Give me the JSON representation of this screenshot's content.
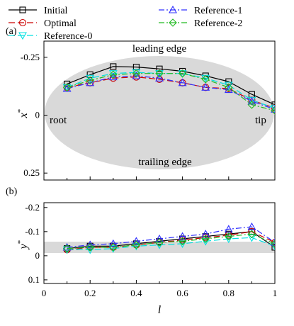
{
  "legend": [
    {
      "name": "Initial",
      "color": "#000000",
      "dash": "",
      "marker": "square"
    },
    {
      "name": "Optimal",
      "color": "#cc0000",
      "dash": "9 4",
      "marker": "circle"
    },
    {
      "name": "Reference-0",
      "color": "#00e0e0",
      "dash": "9 4",
      "marker": "tri-down"
    },
    {
      "name": "Reference-1",
      "color": "#3030ff",
      "dash": "8 3 2 3",
      "marker": "tri-up"
    },
    {
      "name": "Reference-2",
      "color": "#22bb22",
      "dash": "8 3 2 3",
      "marker": "diamond"
    }
  ],
  "panel_a": {
    "label": "(a)",
    "ylabel": "x*",
    "yticks": [
      "-0.25",
      "0",
      "0.25"
    ],
    "annotations": {
      "leading": "leading edge",
      "trailing": "trailing edge",
      "root": "root",
      "tip": "tip"
    },
    "ellipse_color": "#d9d9d9"
  },
  "panel_b": {
    "label": "(b)",
    "ylabel": "y*",
    "yticks": [
      "-0.2",
      "-0.1",
      "0",
      "0.1"
    ],
    "xticks": [
      "0",
      "0.2",
      "0.4",
      "0.6",
      "0.8",
      "1"
    ],
    "xlabel": "l",
    "band_color": "#d9d9d9"
  },
  "chart_data": [
    {
      "type": "line",
      "panel": "a",
      "ylabel": "x*",
      "ylim": [
        0.28,
        -0.32
      ],
      "xlim": [
        0,
        1
      ],
      "x": [
        0.1,
        0.2,
        0.3,
        0.4,
        0.5,
        0.6,
        0.7,
        0.8,
        0.9,
        1.0
      ],
      "series": [
        {
          "name": "Initial",
          "values": [
            -0.135,
            -0.175,
            -0.21,
            -0.208,
            -0.2,
            -0.19,
            -0.17,
            -0.145,
            -0.09,
            -0.045
          ]
        },
        {
          "name": "Optimal",
          "values": [
            -0.12,
            -0.14,
            -0.16,
            -0.165,
            -0.155,
            -0.14,
            -0.12,
            -0.115,
            -0.065,
            -0.03
          ]
        },
        {
          "name": "Reference-0",
          "values": [
            -0.12,
            -0.16,
            -0.18,
            -0.185,
            -0.18,
            -0.18,
            -0.16,
            -0.13,
            -0.065,
            -0.03
          ]
        },
        {
          "name": "Reference-1",
          "values": [
            -0.115,
            -0.14,
            -0.165,
            -0.17,
            -0.16,
            -0.14,
            -0.12,
            -0.11,
            -0.06,
            -0.025
          ]
        },
        {
          "name": "Reference-2",
          "values": [
            -0.12,
            -0.15,
            -0.175,
            -0.18,
            -0.18,
            -0.18,
            -0.155,
            -0.12,
            -0.045,
            -0.02
          ]
        }
      ]
    },
    {
      "type": "line",
      "panel": "b",
      "xlabel": "l",
      "ylabel": "y*",
      "ylim": [
        0.115,
        -0.22
      ],
      "xlim": [
        0,
        1
      ],
      "x": [
        0.1,
        0.2,
        0.3,
        0.4,
        0.5,
        0.6,
        0.7,
        0.8,
        0.9,
        1.0
      ],
      "series": [
        {
          "name": "Initial",
          "values": [
            -0.03,
            -0.04,
            -0.04,
            -0.05,
            -0.06,
            -0.07,
            -0.08,
            -0.09,
            -0.1,
            -0.035
          ]
        },
        {
          "name": "Optimal",
          "values": [
            -0.025,
            -0.035,
            -0.035,
            -0.045,
            -0.055,
            -0.065,
            -0.075,
            -0.085,
            -0.1,
            -0.055
          ]
        },
        {
          "name": "Reference-0",
          "values": [
            -0.025,
            -0.025,
            -0.03,
            -0.04,
            -0.045,
            -0.05,
            -0.06,
            -0.07,
            -0.075,
            -0.04
          ]
        },
        {
          "name": "Reference-1",
          "values": [
            -0.035,
            -0.045,
            -0.05,
            -0.06,
            -0.07,
            -0.08,
            -0.09,
            -0.11,
            -0.12,
            -0.055
          ]
        },
        {
          "name": "Reference-2",
          "values": [
            -0.03,
            -0.035,
            -0.035,
            -0.045,
            -0.055,
            -0.06,
            -0.07,
            -0.08,
            -0.09,
            -0.05
          ]
        }
      ]
    }
  ]
}
